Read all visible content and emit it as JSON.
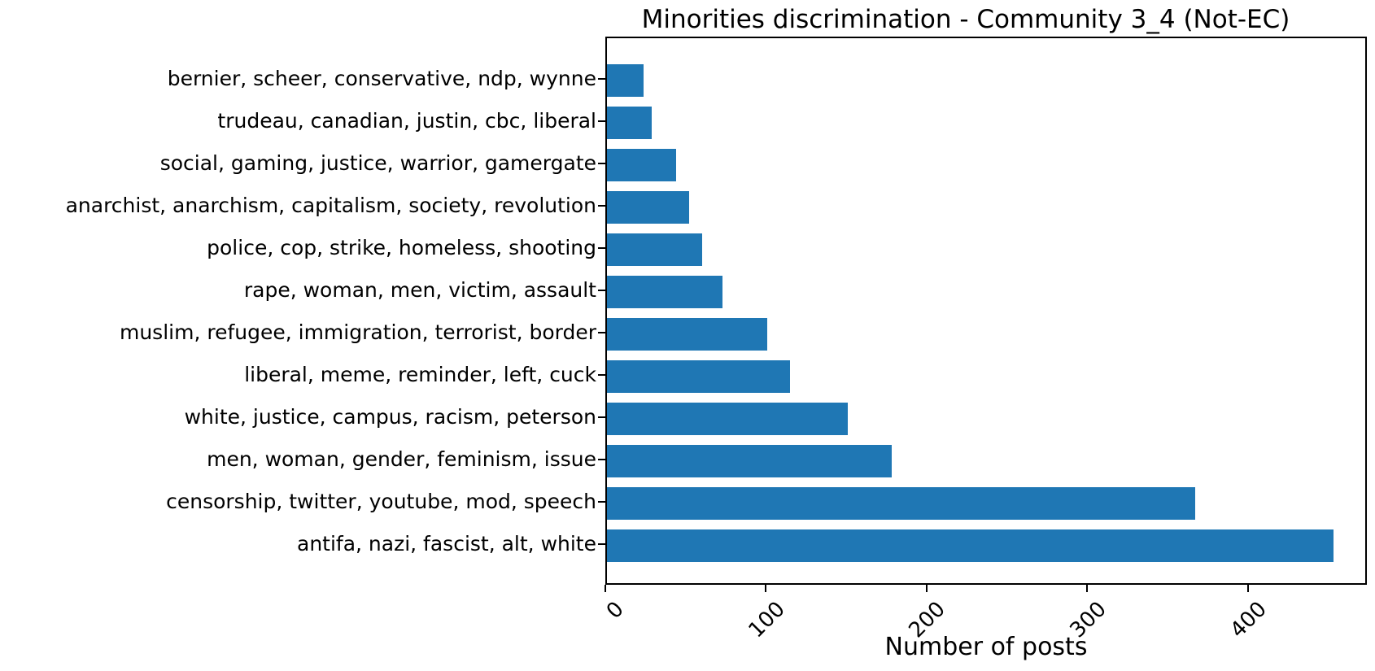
{
  "title": "Minorities discrimination - Community 3_4 (Not-EC)",
  "chart_data": {
    "type": "bar",
    "orientation": "horizontal",
    "title": "Minorities discrimination - Community 3_4 (Not-EC)",
    "xlabel": "Number of posts",
    "ylabel": "",
    "categories": [
      "bernier, scheer, conservative, ndp, wynne",
      "trudeau, canadian, justin, cbc, liberal",
      "social, gaming, justice, warrior, gamergate",
      "anarchist, anarchism, capitalism, society, revolution",
      "police, cop, strike, homeless, shooting",
      "rape, woman, men, victim, assault",
      "muslim, refugee, immigration, terrorist, border",
      "liberal, meme, reminder, left, cuck",
      "white, justice, campus, racism, peterson",
      "men, woman, gender, feminism, issue",
      "censorship, twitter, youtube, mod, speech",
      "antifa, nazi, fascist, alt, white"
    ],
    "values": [
      23,
      28,
      43,
      51,
      59,
      72,
      100,
      114,
      150,
      177,
      366,
      452
    ],
    "xticks": [
      0,
      100,
      200,
      300,
      400
    ],
    "xlim": [
      0,
      474
    ],
    "bar_color": "#1f77b4",
    "grid": false,
    "legend": null,
    "x_tick_rotation": 45
  }
}
